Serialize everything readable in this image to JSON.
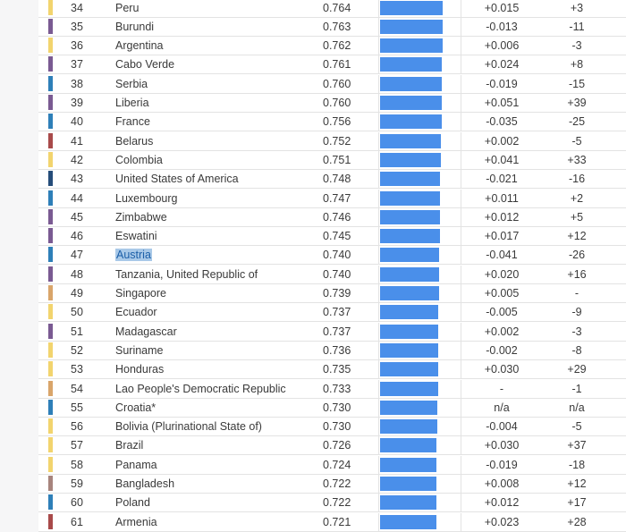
{
  "colors": {
    "yellow": "#f2d46e",
    "purple": "#7a5a92",
    "blue": "#2e7fb8",
    "red": "#a84a4a",
    "navy": "#264d7a",
    "tan": "#d9a56a",
    "mauve": "#a7847d",
    "bar": "#4a8fea",
    "highlight": "#a9c9e8"
  },
  "rows": [
    {
      "rank": "34",
      "country": "Peru",
      "score": "0.764",
      "value": 0.764,
      "change": "+0.015",
      "rank_change": "+3",
      "color": "#f2d46e"
    },
    {
      "rank": "35",
      "country": "Burundi",
      "score": "0.763",
      "value": 0.763,
      "change": "-0.013",
      "rank_change": "-11",
      "color": "#7a5a92"
    },
    {
      "rank": "36",
      "country": "Argentina",
      "score": "0.762",
      "value": 0.762,
      "change": "+0.006",
      "rank_change": "-3",
      "color": "#f2d46e"
    },
    {
      "rank": "37",
      "country": "Cabo Verde",
      "score": "0.761",
      "value": 0.761,
      "change": "+0.024",
      "rank_change": "+8",
      "color": "#7a5a92"
    },
    {
      "rank": "38",
      "country": "Serbia",
      "score": "0.760",
      "value": 0.76,
      "change": "-0.019",
      "rank_change": "-15",
      "color": "#2e7fb8"
    },
    {
      "rank": "39",
      "country": "Liberia",
      "score": "0.760",
      "value": 0.76,
      "change": "+0.051",
      "rank_change": "+39",
      "color": "#7a5a92"
    },
    {
      "rank": "40",
      "country": "France",
      "score": "0.756",
      "value": 0.756,
      "change": "-0.035",
      "rank_change": "-25",
      "color": "#2e7fb8"
    },
    {
      "rank": "41",
      "country": "Belarus",
      "score": "0.752",
      "value": 0.752,
      "change": "+0.002",
      "rank_change": "-5",
      "color": "#a84a4a"
    },
    {
      "rank": "42",
      "country": "Colombia",
      "score": "0.751",
      "value": 0.751,
      "change": "+0.041",
      "rank_change": "+33",
      "color": "#f2d46e"
    },
    {
      "rank": "43",
      "country": "United States of America",
      "score": "0.748",
      "value": 0.748,
      "change": "-0.021",
      "rank_change": "-16",
      "color": "#264d7a"
    },
    {
      "rank": "44",
      "country": "Luxembourg",
      "score": "0.747",
      "value": 0.747,
      "change": "+0.011",
      "rank_change": "+2",
      "color": "#2e7fb8"
    },
    {
      "rank": "45",
      "country": "Zimbabwe",
      "score": "0.746",
      "value": 0.746,
      "change": "+0.012",
      "rank_change": "+5",
      "color": "#7a5a92"
    },
    {
      "rank": "46",
      "country": "Eswatini",
      "score": "0.745",
      "value": 0.745,
      "change": "+0.017",
      "rank_change": "+12",
      "color": "#7a5a92"
    },
    {
      "rank": "47",
      "country": "Austria",
      "score": "0.740",
      "value": 0.74,
      "change": "-0.041",
      "rank_change": "-26",
      "color": "#2e7fb8",
      "selected": true
    },
    {
      "rank": "48",
      "country": "Tanzania, United Republic of",
      "score": "0.740",
      "value": 0.74,
      "change": "+0.020",
      "rank_change": "+16",
      "color": "#7a5a92"
    },
    {
      "rank": "49",
      "country": "Singapore",
      "score": "0.739",
      "value": 0.739,
      "change": "+0.005",
      "rank_change": "-",
      "color": "#d9a56a"
    },
    {
      "rank": "50",
      "country": "Ecuador",
      "score": "0.737",
      "value": 0.737,
      "change": "-0.005",
      "rank_change": "-9",
      "color": "#f2d46e"
    },
    {
      "rank": "51",
      "country": "Madagascar",
      "score": "0.737",
      "value": 0.737,
      "change": "+0.002",
      "rank_change": "-3",
      "color": "#7a5a92"
    },
    {
      "rank": "52",
      "country": "Suriname",
      "score": "0.736",
      "value": 0.736,
      "change": "-0.002",
      "rank_change": "-8",
      "color": "#f2d46e"
    },
    {
      "rank": "53",
      "country": "Honduras",
      "score": "0.735",
      "value": 0.735,
      "change": "+0.030",
      "rank_change": "+29",
      "color": "#f2d46e"
    },
    {
      "rank": "54",
      "country": "Lao People's Democratic Republic",
      "score": "0.733",
      "value": 0.733,
      "change": "-",
      "rank_change": "-1",
      "color": "#d9a56a"
    },
    {
      "rank": "55",
      "country": "Croatia*",
      "score": "0.730",
      "value": 0.73,
      "change": "n/a",
      "rank_change": "n/a",
      "color": "#2e7fb8"
    },
    {
      "rank": "56",
      "country": "Bolivia (Plurinational State of)",
      "score": "0.730",
      "value": 0.73,
      "change": "-0.004",
      "rank_change": "-5",
      "color": "#f2d46e"
    },
    {
      "rank": "57",
      "country": "Brazil",
      "score": "0.726",
      "value": 0.726,
      "change": "+0.030",
      "rank_change": "+37",
      "color": "#f2d46e"
    },
    {
      "rank": "58",
      "country": "Panama",
      "score": "0.724",
      "value": 0.724,
      "change": "-0.019",
      "rank_change": "-18",
      "color": "#f2d46e"
    },
    {
      "rank": "59",
      "country": "Bangladesh",
      "score": "0.722",
      "value": 0.722,
      "change": "+0.008",
      "rank_change": "+12",
      "color": "#a7847d"
    },
    {
      "rank": "60",
      "country": "Poland",
      "score": "0.722",
      "value": 0.722,
      "change": "+0.012",
      "rank_change": "+17",
      "color": "#2e7fb8"
    },
    {
      "rank": "61",
      "country": "Armenia",
      "score": "0.721",
      "value": 0.721,
      "change": "+0.023",
      "rank_change": "+28",
      "color": "#a84a4a"
    }
  ]
}
